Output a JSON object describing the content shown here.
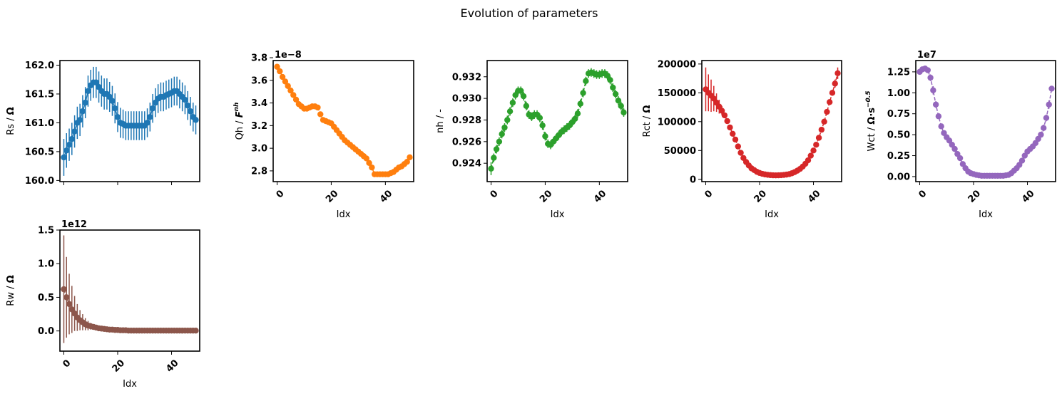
{
  "figure": {
    "title": "Evolution of parameters"
  },
  "chart_data": [
    {
      "type": "scatter",
      "id": "rs",
      "color": "#1f77b4",
      "ylabel_text": "Rs / ",
      "ylabel_unit": "Ω",
      "xlabel": "",
      "offset_text": "",
      "xlim": [
        -1.45,
        50.45
      ],
      "ylim": [
        159.98,
        162.08
      ],
      "xticks": [
        0,
        20,
        40
      ],
      "xticklabels": [
        "",
        "",
        ""
      ],
      "yticks": [
        160.0,
        160.5,
        161.0,
        161.5,
        162.0
      ],
      "yticklabels": [
        "160.0",
        "160.5",
        "161.0",
        "161.5",
        "162.0"
      ],
      "marker": false,
      "x": [
        0,
        1,
        2,
        3,
        4,
        5,
        6,
        7,
        8,
        9,
        10,
        11,
        12,
        13,
        14,
        15,
        16,
        17,
        18,
        19,
        20,
        21,
        22,
        23,
        24,
        25,
        26,
        27,
        28,
        29,
        30,
        31,
        32,
        33,
        34,
        35,
        36,
        37,
        38,
        39,
        40,
        41,
        42,
        43,
        44,
        45,
        46,
        47,
        48,
        49
      ],
      "y": [
        160.4,
        160.52,
        160.62,
        160.72,
        160.85,
        161.0,
        161.05,
        161.2,
        161.35,
        161.55,
        161.65,
        161.7,
        161.7,
        161.62,
        161.55,
        161.5,
        161.5,
        161.45,
        161.38,
        161.25,
        161.1,
        161.0,
        160.98,
        160.95,
        160.95,
        160.95,
        160.95,
        160.95,
        160.95,
        160.95,
        160.95,
        161.0,
        161.1,
        161.25,
        161.35,
        161.42,
        161.45,
        161.45,
        161.48,
        161.5,
        161.52,
        161.55,
        161.55,
        161.5,
        161.45,
        161.4,
        161.3,
        161.2,
        161.1,
        161.05
      ],
      "err": [
        0.32,
        0.3,
        0.28,
        0.28,
        0.28,
        0.28,
        0.28,
        0.28,
        0.27,
        0.27,
        0.27,
        0.27,
        0.27,
        0.27,
        0.27,
        0.27,
        0.27,
        0.26,
        0.26,
        0.26,
        0.26,
        0.26,
        0.25,
        0.25,
        0.25,
        0.25,
        0.25,
        0.25,
        0.25,
        0.25,
        0.25,
        0.25,
        0.25,
        0.25,
        0.25,
        0.25,
        0.25,
        0.25,
        0.25,
        0.25,
        0.25,
        0.25,
        0.25,
        0.25,
        0.25,
        0.25,
        0.25,
        0.25,
        0.25,
        0.25
      ]
    },
    {
      "type": "scatter",
      "id": "qh",
      "color": "#ff7f0e",
      "ylabel_text": "Qh / ",
      "ylabel_unit": "F",
      "ylabel_sup": "nh",
      "xlabel": "Idx",
      "offset_text": "1e−8",
      "xlim": [
        -1.45,
        50.45
      ],
      "ylim": [
        2.705,
        3.775
      ],
      "xticks": [
        0,
        20,
        40
      ],
      "xticklabels": [
        "0",
        "20",
        "40"
      ],
      "yticks": [
        2.8,
        3.0,
        3.2,
        3.4,
        3.6,
        3.8
      ],
      "yticklabels": [
        "2.8",
        "3.0",
        "3.2",
        "3.4",
        "3.6",
        "3.8"
      ],
      "marker": true,
      "x": [
        0,
        1,
        2,
        3,
        4,
        5,
        6,
        7,
        8,
        9,
        10,
        11,
        12,
        13,
        14,
        15,
        16,
        17,
        18,
        19,
        20,
        21,
        22,
        23,
        24,
        25,
        26,
        27,
        28,
        29,
        30,
        31,
        32,
        33,
        34,
        35,
        36,
        37,
        38,
        39,
        40,
        41,
        42,
        43,
        44,
        45,
        46,
        47,
        48,
        49
      ],
      "y": [
        3.72,
        3.68,
        3.63,
        3.59,
        3.55,
        3.51,
        3.47,
        3.43,
        3.39,
        3.37,
        3.35,
        3.35,
        3.36,
        3.37,
        3.37,
        3.36,
        3.3,
        3.25,
        3.24,
        3.23,
        3.22,
        3.19,
        3.16,
        3.13,
        3.1,
        3.07,
        3.05,
        3.03,
        3.01,
        2.99,
        2.97,
        2.95,
        2.93,
        2.91,
        2.87,
        2.83,
        2.77,
        2.77,
        2.77,
        2.77,
        2.77,
        2.77,
        2.78,
        2.79,
        2.81,
        2.83,
        2.84,
        2.86,
        2.88,
        2.92
      ],
      "err": [
        0.01,
        0.01,
        0.01,
        0.01,
        0.01,
        0.01,
        0.01,
        0.01,
        0.01,
        0.01,
        0.01,
        0.01,
        0.01,
        0.01,
        0.01,
        0.01,
        0.01,
        0.01,
        0.01,
        0.01,
        0.01,
        0.01,
        0.01,
        0.01,
        0.01,
        0.01,
        0.01,
        0.01,
        0.01,
        0.01,
        0.01,
        0.01,
        0.01,
        0.01,
        0.01,
        0.01,
        0.01,
        0.01,
        0.01,
        0.01,
        0.01,
        0.01,
        0.01,
        0.01,
        0.01,
        0.01,
        0.01,
        0.01,
        0.01,
        0.01
      ]
    },
    {
      "type": "scatter",
      "id": "nh",
      "color": "#2ca02c",
      "ylabel_text": "nh / -",
      "ylabel_unit": "",
      "xlabel": "Idx",
      "offset_text": "",
      "xlim": [
        -1.45,
        50.45
      ],
      "ylim": [
        0.9223,
        0.9335
      ],
      "xticks": [
        0,
        20,
        40
      ],
      "xticklabels": [
        "0",
        "20",
        "40"
      ],
      "yticks": [
        0.924,
        0.926,
        0.928,
        0.93,
        0.932
      ],
      "yticklabels": [
        "0.924",
        "0.926",
        "0.928",
        "0.930",
        "0.932"
      ],
      "marker": true,
      "x": [
        0,
        1,
        2,
        3,
        4,
        5,
        6,
        7,
        8,
        9,
        10,
        11,
        12,
        13,
        14,
        15,
        16,
        17,
        18,
        19,
        20,
        21,
        22,
        23,
        24,
        25,
        26,
        27,
        28,
        29,
        30,
        31,
        32,
        33,
        34,
        35,
        36,
        37,
        38,
        39,
        40,
        41,
        42,
        43,
        44,
        45,
        46,
        47,
        48,
        49
      ],
      "y": [
        0.9235,
        0.9245,
        0.9253,
        0.926,
        0.9267,
        0.9273,
        0.928,
        0.9288,
        0.9296,
        0.9303,
        0.9307,
        0.9307,
        0.9302,
        0.9293,
        0.9285,
        0.9283,
        0.9285,
        0.9285,
        0.9282,
        0.9275,
        0.9265,
        0.9258,
        0.9257,
        0.926,
        0.9263,
        0.9266,
        0.9269,
        0.9271,
        0.9273,
        0.9275,
        0.9278,
        0.9281,
        0.9286,
        0.9295,
        0.9305,
        0.9316,
        0.9323,
        0.9324,
        0.9323,
        0.9322,
        0.9322,
        0.9323,
        0.9323,
        0.9321,
        0.9317,
        0.931,
        0.9304,
        0.9298,
        0.9293,
        0.9287
      ],
      "err": [
        0.0006,
        0.0004,
        0.0004,
        0.0004,
        0.0004,
        0.0004,
        0.0004,
        0.0004,
        0.0004,
        0.0004,
        0.0004,
        0.0004,
        0.0004,
        0.0004,
        0.0004,
        0.0004,
        0.0004,
        0.0004,
        0.0004,
        0.0004,
        0.0004,
        0.0004,
        0.0004,
        0.0004,
        0.0004,
        0.0004,
        0.0004,
        0.0004,
        0.0004,
        0.0004,
        0.0004,
        0.0004,
        0.0004,
        0.0004,
        0.0004,
        0.0004,
        0.0004,
        0.0004,
        0.0004,
        0.0004,
        0.0004,
        0.0004,
        0.0004,
        0.0004,
        0.0004,
        0.0004,
        0.0004,
        0.0004,
        0.0004,
        0.0004
      ]
    },
    {
      "type": "scatter",
      "id": "rct",
      "color": "#d62728",
      "ylabel_text": "Rct / ",
      "ylabel_unit": "Ω",
      "xlabel": "Idx",
      "offset_text": "",
      "xlim": [
        -1.45,
        50.45
      ],
      "ylim": [
        -4000,
        206000
      ],
      "xticks": [
        0,
        20,
        40
      ],
      "xticklabels": [
        "0",
        "20",
        "40"
      ],
      "yticks": [
        0,
        50000,
        100000,
        150000,
        200000
      ],
      "yticklabels": [
        "0",
        "50000",
        "100000",
        "150000",
        "200000"
      ],
      "marker": true,
      "x": [
        0,
        1,
        2,
        3,
        4,
        5,
        6,
        7,
        8,
        9,
        10,
        11,
        12,
        13,
        14,
        15,
        16,
        17,
        18,
        19,
        20,
        21,
        22,
        23,
        24,
        25,
        26,
        27,
        28,
        29,
        30,
        31,
        32,
        33,
        34,
        35,
        36,
        37,
        38,
        39,
        40,
        41,
        42,
        43,
        44,
        45,
        46,
        47,
        48,
        49
      ],
      "y": [
        156000,
        150000,
        145000,
        140000,
        133000,
        126000,
        119000,
        111000,
        101000,
        90000,
        79000,
        69000,
        57000,
        46000,
        37000,
        30000,
        24000,
        19000,
        16000,
        13000,
        11000,
        9500,
        8500,
        7800,
        7300,
        7000,
        6900,
        7000,
        7200,
        7600,
        8200,
        9000,
        10500,
        12500,
        15000,
        18000,
        22000,
        27000,
        33000,
        41000,
        50000,
        60000,
        72000,
        86000,
        100000,
        117000,
        134000,
        150000,
        166000,
        184000
      ],
      "err": [
        38000,
        32000,
        28000,
        22000,
        16000,
        12000,
        8000,
        5000,
        3500,
        2500,
        2000,
        1800,
        1600,
        1400,
        1200,
        1100,
        1000,
        900,
        800,
        700,
        600,
        600,
        500,
        500,
        500,
        500,
        500,
        500,
        500,
        500,
        500,
        500,
        500,
        500,
        500,
        500,
        600,
        700,
        800,
        900,
        1000,
        1200,
        1400,
        1700,
        2000,
        2500,
        3500,
        5000,
        7000,
        10000
      ]
    },
    {
      "type": "scatter",
      "id": "wct",
      "color": "#9467bd",
      "ylabel_text": "Wct / ",
      "ylabel_unit": "Ω·s",
      "ylabel_sup": "−0.5",
      "xlabel": "Idx",
      "offset_text": "1e7",
      "xlim": [
        -1.45,
        50.45
      ],
      "ylim": [
        -0.06,
        1.385
      ],
      "xticks": [
        0,
        20,
        40
      ],
      "xticklabels": [
        "0",
        "20",
        "40"
      ],
      "yticks": [
        0.0,
        0.25,
        0.5,
        0.75,
        1.0,
        1.25
      ],
      "yticklabels": [
        "0.00",
        "0.25",
        "0.50",
        "0.75",
        "1.00",
        "1.25"
      ],
      "marker": true,
      "x": [
        0,
        1,
        2,
        3,
        4,
        5,
        6,
        7,
        8,
        9,
        10,
        11,
        12,
        13,
        14,
        15,
        16,
        17,
        18,
        19,
        20,
        21,
        22,
        23,
        24,
        25,
        26,
        27,
        28,
        29,
        30,
        31,
        32,
        33,
        34,
        35,
        36,
        37,
        38,
        39,
        40,
        41,
        42,
        43,
        44,
        45,
        46,
        47,
        48,
        49
      ],
      "y": [
        1.25,
        1.28,
        1.29,
        1.27,
        1.18,
        1.03,
        0.86,
        0.72,
        0.6,
        0.52,
        0.47,
        0.43,
        0.38,
        0.33,
        0.27,
        0.22,
        0.15,
        0.1,
        0.06,
        0.04,
        0.03,
        0.02,
        0.015,
        0.01,
        0.01,
        0.01,
        0.01,
        0.01,
        0.01,
        0.01,
        0.01,
        0.01,
        0.015,
        0.02,
        0.04,
        0.07,
        0.1,
        0.14,
        0.19,
        0.25,
        0.3,
        0.33,
        0.36,
        0.4,
        0.45,
        0.5,
        0.58,
        0.7,
        0.86,
        1.05
      ],
      "err": [
        0.02,
        0.02,
        0.02,
        0.02,
        0.04,
        0.05,
        0.04,
        0.03,
        0.03,
        0.03,
        0.02,
        0.02,
        0.02,
        0.02,
        0.02,
        0.02,
        0.02,
        0.02,
        0.01,
        0.01,
        0.01,
        0.01,
        0.01,
        0.01,
        0.01,
        0.01,
        0.01,
        0.01,
        0.01,
        0.01,
        0.01,
        0.01,
        0.01,
        0.01,
        0.01,
        0.01,
        0.01,
        0.01,
        0.01,
        0.02,
        0.02,
        0.02,
        0.02,
        0.02,
        0.02,
        0.03,
        0.04,
        0.04,
        0.05,
        0.03
      ]
    },
    {
      "type": "scatter",
      "id": "rw",
      "color": "#8c564b",
      "ylabel_text": "Rw / ",
      "ylabel_unit": "Ω",
      "xlabel": "Idx",
      "offset_text": "1e12",
      "xlim": [
        -1.45,
        50.45
      ],
      "ylim": [
        -0.3,
        1.5
      ],
      "xticks": [
        0,
        20,
        40
      ],
      "xticklabels": [
        "0",
        "20",
        "40"
      ],
      "yticks": [
        0.0,
        0.5,
        1.0,
        1.5
      ],
      "yticklabels": [
        "0.0",
        "0.5",
        "1.0",
        "1.5"
      ],
      "marker": true,
      "x": [
        0,
        1,
        2,
        3,
        4,
        5,
        6,
        7,
        8,
        9,
        10,
        11,
        12,
        13,
        14,
        15,
        16,
        17,
        18,
        19,
        20,
        21,
        22,
        23,
        24,
        25,
        26,
        27,
        28,
        29,
        30,
        31,
        32,
        33,
        34,
        35,
        36,
        37,
        38,
        39,
        40,
        41,
        42,
        43,
        44,
        45,
        46,
        47,
        48,
        49
      ],
      "y": [
        0.62,
        0.5,
        0.4,
        0.32,
        0.26,
        0.2,
        0.16,
        0.13,
        0.1,
        0.08,
        0.07,
        0.06,
        0.05,
        0.04,
        0.035,
        0.03,
        0.025,
        0.02,
        0.02,
        0.015,
        0.015,
        0.01,
        0.01,
        0.01,
        0.005,
        0.005,
        0.005,
        0.005,
        0.005,
        0.005,
        0.005,
        0.005,
        0.005,
        0.005,
        0.005,
        0.005,
        0.005,
        0.005,
        0.005,
        0.005,
        0.005,
        0.005,
        0.005,
        0.005,
        0.005,
        0.005,
        0.005,
        0.005,
        0.005,
        0.005
      ],
      "err": [
        0.8,
        0.6,
        0.45,
        0.35,
        0.26,
        0.2,
        0.15,
        0.12,
        0.09,
        0.07,
        0.05,
        0.04,
        0.035,
        0.03,
        0.025,
        0.02,
        0.018,
        0.015,
        0.012,
        0.01,
        0.01,
        0.01,
        0.008,
        0.006,
        0.005,
        0.005,
        0.004,
        0.004,
        0.004,
        0.004,
        0.004,
        0.004,
        0.004,
        0.004,
        0.004,
        0.004,
        0.004,
        0.004,
        0.004,
        0.004,
        0.004,
        0.004,
        0.004,
        0.004,
        0.004,
        0.004,
        0.004,
        0.004,
        0.004,
        0.004
      ]
    }
  ]
}
